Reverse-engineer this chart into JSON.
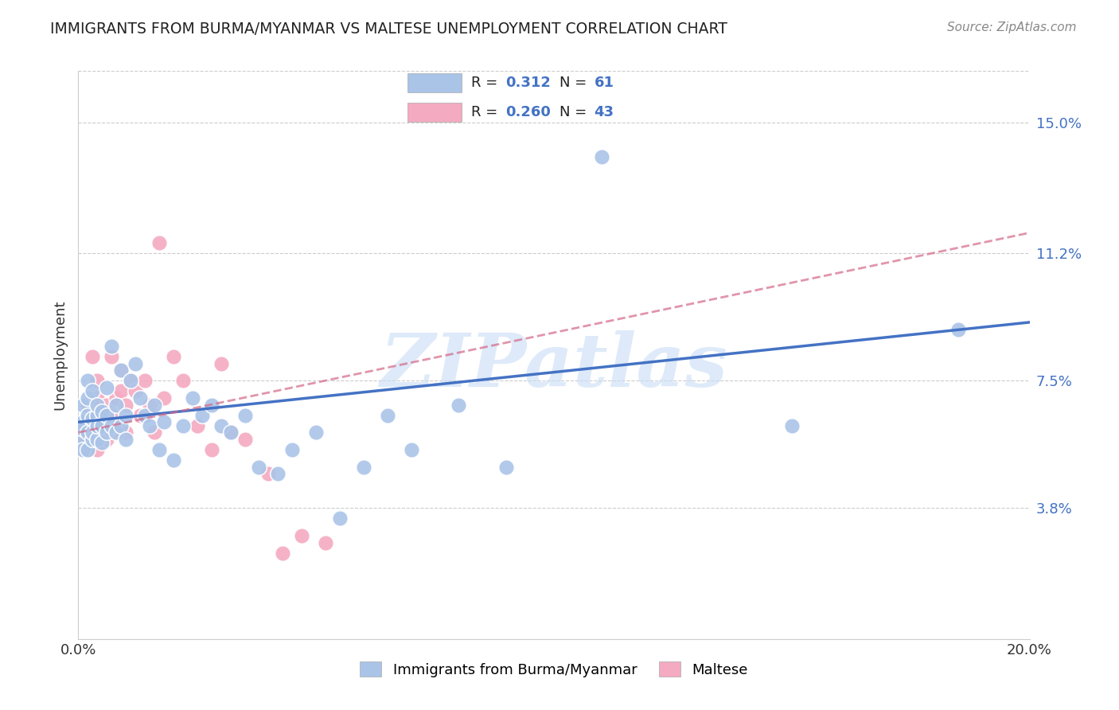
{
  "title": "IMMIGRANTS FROM BURMA/MYANMAR VS MALTESE UNEMPLOYMENT CORRELATION CHART",
  "source": "Source: ZipAtlas.com",
  "ylabel": "Unemployment",
  "xmin": 0.0,
  "xmax": 0.2,
  "ymin": 0.0,
  "ymax": 0.165,
  "xticks": [
    0.0,
    0.04,
    0.08,
    0.12,
    0.16,
    0.2
  ],
  "xticklabels": [
    "0.0%",
    "",
    "",
    "",
    "",
    "20.0%"
  ],
  "ytick_positions": [
    0.038,
    0.075,
    0.112,
    0.15
  ],
  "ytick_labels": [
    "3.8%",
    "7.5%",
    "11.2%",
    "15.0%"
  ],
  "R_blue": "0.312",
  "N_blue": "61",
  "R_pink": "0.260",
  "N_pink": "43",
  "blue_color": "#aac4e8",
  "pink_color": "#f4aac0",
  "blue_line_color": "#4472c4",
  "pink_line_color": "#d46888",
  "legend_label_blue": "Immigrants from Burma/Myanmar",
  "legend_label_pink": "Maltese",
  "blue_scatter_x": [
    0.001,
    0.001,
    0.001,
    0.001,
    0.001,
    0.002,
    0.002,
    0.002,
    0.002,
    0.002,
    0.003,
    0.003,
    0.003,
    0.003,
    0.004,
    0.004,
    0.004,
    0.004,
    0.005,
    0.005,
    0.005,
    0.006,
    0.006,
    0.006,
    0.007,
    0.007,
    0.008,
    0.008,
    0.009,
    0.009,
    0.01,
    0.01,
    0.011,
    0.012,
    0.013,
    0.014,
    0.015,
    0.016,
    0.017,
    0.018,
    0.02,
    0.022,
    0.024,
    0.026,
    0.028,
    0.03,
    0.032,
    0.035,
    0.038,
    0.042,
    0.045,
    0.05,
    0.055,
    0.06,
    0.065,
    0.07,
    0.08,
    0.09,
    0.11,
    0.15,
    0.185
  ],
  "blue_scatter_y": [
    0.063,
    0.058,
    0.055,
    0.068,
    0.061,
    0.065,
    0.07,
    0.06,
    0.055,
    0.075,
    0.058,
    0.064,
    0.072,
    0.06,
    0.065,
    0.058,
    0.062,
    0.068,
    0.062,
    0.066,
    0.057,
    0.073,
    0.06,
    0.065,
    0.085,
    0.062,
    0.068,
    0.06,
    0.078,
    0.062,
    0.065,
    0.058,
    0.075,
    0.08,
    0.07,
    0.065,
    0.062,
    0.068,
    0.055,
    0.063,
    0.052,
    0.062,
    0.07,
    0.065,
    0.068,
    0.062,
    0.06,
    0.065,
    0.05,
    0.048,
    0.055,
    0.06,
    0.035,
    0.05,
    0.065,
    0.055,
    0.068,
    0.05,
    0.14,
    0.062,
    0.09
  ],
  "pink_scatter_x": [
    0.001,
    0.001,
    0.001,
    0.002,
    0.002,
    0.002,
    0.003,
    0.003,
    0.003,
    0.004,
    0.004,
    0.004,
    0.005,
    0.005,
    0.006,
    0.006,
    0.007,
    0.007,
    0.008,
    0.008,
    0.009,
    0.009,
    0.01,
    0.01,
    0.011,
    0.012,
    0.013,
    0.014,
    0.015,
    0.016,
    0.017,
    0.018,
    0.02,
    0.022,
    0.025,
    0.028,
    0.03,
    0.032,
    0.035,
    0.04,
    0.043,
    0.047,
    0.052
  ],
  "pink_scatter_y": [
    0.06,
    0.058,
    0.062,
    0.063,
    0.055,
    0.068,
    0.082,
    0.058,
    0.065,
    0.055,
    0.075,
    0.07,
    0.06,
    0.062,
    0.068,
    0.058,
    0.082,
    0.065,
    0.07,
    0.06,
    0.078,
    0.072,
    0.068,
    0.06,
    0.075,
    0.072,
    0.065,
    0.075,
    0.068,
    0.06,
    0.115,
    0.07,
    0.082,
    0.075,
    0.062,
    0.055,
    0.08,
    0.06,
    0.058,
    0.048,
    0.025,
    0.03,
    0.028
  ],
  "blue_line_start_y": 0.063,
  "blue_line_end_y": 0.092,
  "pink_line_start_y": 0.06,
  "pink_line_end_y": 0.118,
  "watermark_text": "ZIPatlas",
  "watermark_color": "#c8ddf5",
  "watermark_alpha": 0.6,
  "grid_color": "#cccccc",
  "bg_color": "#ffffff",
  "title_color": "#222222",
  "source_color": "#888888"
}
